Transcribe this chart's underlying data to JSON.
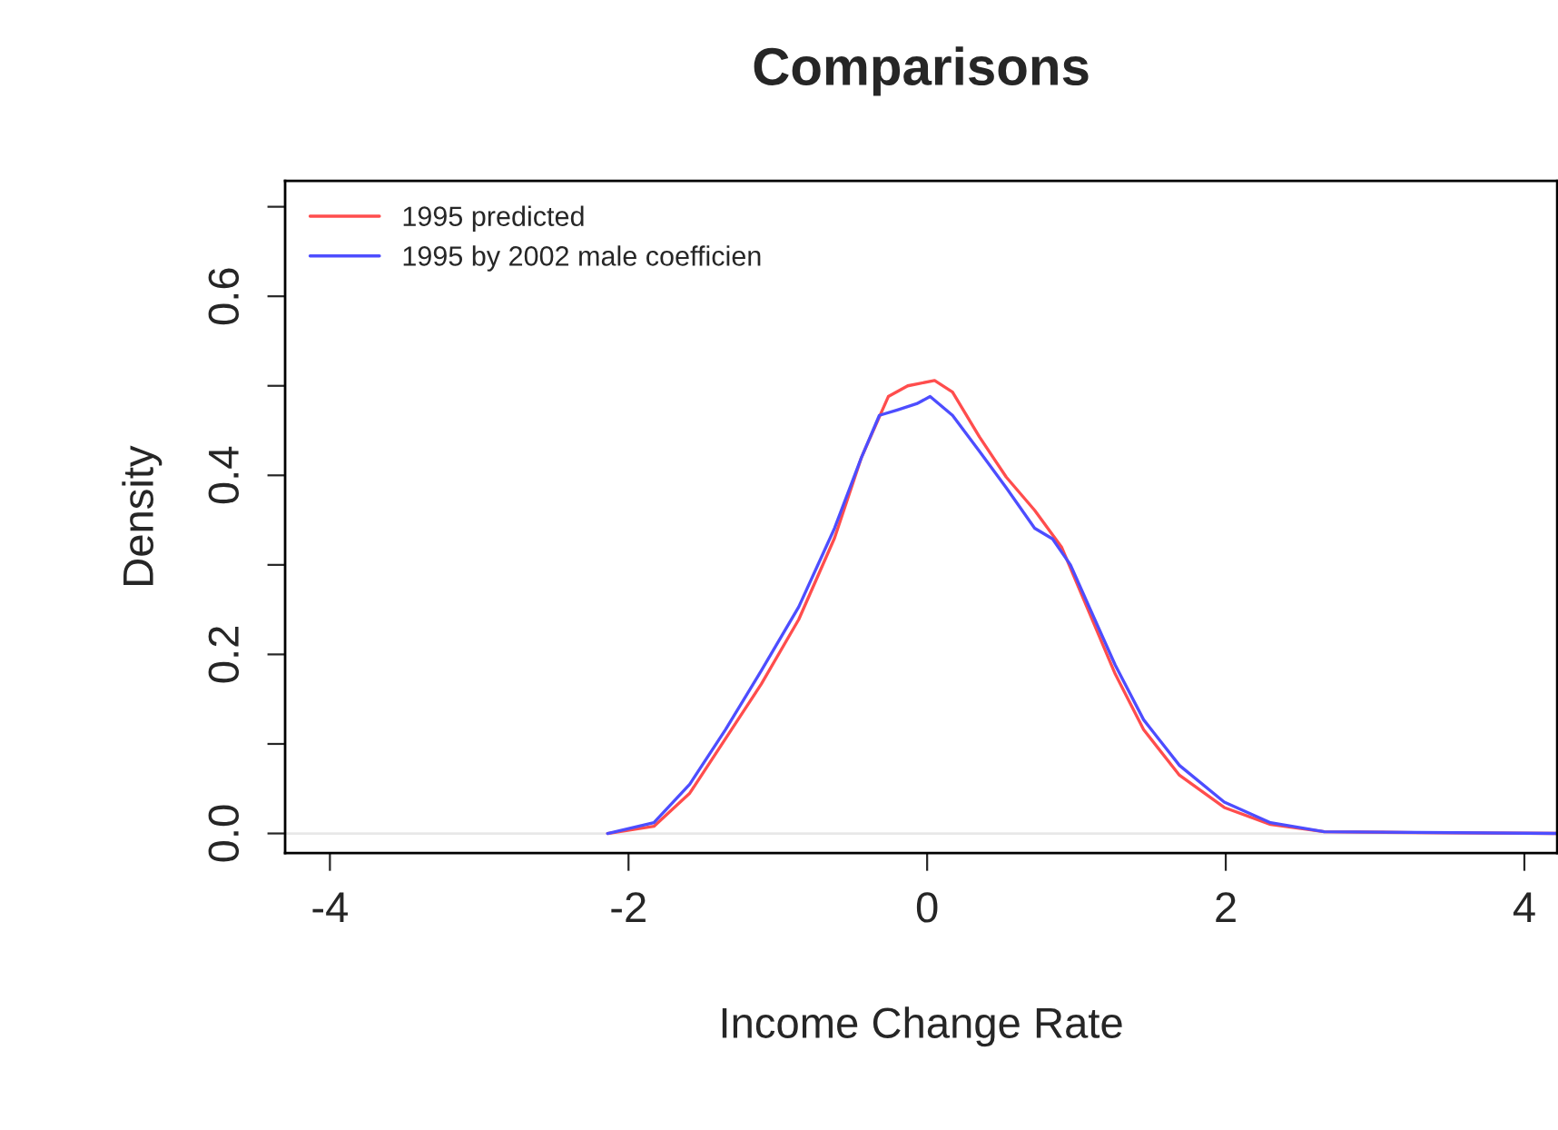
{
  "chart_data": {
    "type": "line",
    "title": "Comparisons",
    "xlabel": "Income Change Rate",
    "ylabel": "Density",
    "xlim": [
      -4.3,
      4.22
    ],
    "xticks": [
      -4,
      -2,
      0,
      2,
      4
    ],
    "ylim": [
      -0.022,
      0.729
    ],
    "yticks": [
      {
        "value": 0,
        "label": "0.0"
      },
      {
        "value": 0.1,
        "label": null
      },
      0.2,
      {
        "value": 0.3,
        "label": null
      },
      0.4,
      {
        "value": 0.5,
        "label": null
      },
      0.6,
      {
        "value": 0.7,
        "label": null
      }
    ],
    "grid": false,
    "legend": "top left",
    "line_style": "solid",
    "marker": "none",
    "ref_lines": [
      {
        "axis": "y",
        "value": 0,
        "label": null,
        "color": "#e8e8e8"
      }
    ],
    "series": [
      {
        "name": "1995 predicted",
        "color": "#ff4d4d",
        "x": [
          -2.14,
          -1.83,
          -1.59,
          -1.35,
          -1.11,
          -0.86,
          -0.62,
          -0.44,
          -0.26,
          -0.13,
          0.05,
          0.17,
          0.35,
          0.53,
          0.72,
          0.9,
          1.08,
          1.26,
          1.45,
          1.69,
          1.99,
          2.3,
          2.66,
          3.27,
          4.22
        ],
        "values": [
          0,
          0.008,
          0.045,
          0.106,
          0.167,
          0.239,
          0.33,
          0.42,
          0.488,
          0.5,
          0.506,
          0.493,
          0.443,
          0.398,
          0.361,
          0.32,
          0.249,
          0.178,
          0.116,
          0.065,
          0.029,
          0.01,
          0.002,
          0.001,
          0
        ]
      },
      {
        "name": "1995 by 2002 male coefficien",
        "color": "#4d4dff",
        "x": [
          -2.14,
          -1.83,
          -1.59,
          -1.35,
          -1.11,
          -0.86,
          -0.62,
          -0.44,
          -0.32,
          -0.2,
          -0.07,
          0.02,
          0.17,
          0.35,
          0.53,
          0.72,
          0.84,
          0.96,
          1.08,
          1.26,
          1.45,
          1.69,
          1.99,
          2.3,
          2.66,
          4.22
        ],
        "values": [
          0,
          0.012,
          0.055,
          0.116,
          0.182,
          0.253,
          0.341,
          0.42,
          0.467,
          0.473,
          0.48,
          0.488,
          0.467,
          0.427,
          0.386,
          0.341,
          0.329,
          0.3,
          0.255,
          0.188,
          0.127,
          0.076,
          0.035,
          0.012,
          0.002,
          0
        ]
      }
    ]
  }
}
